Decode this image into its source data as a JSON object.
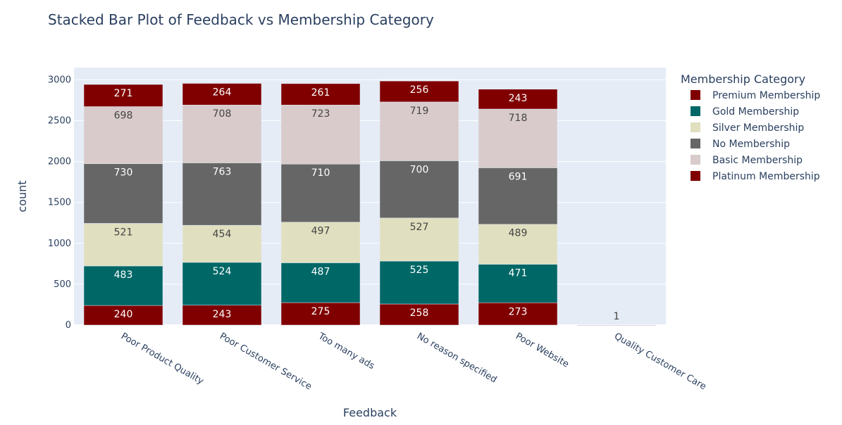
{
  "chart_data": {
    "type": "bar",
    "stacked": true,
    "title": "Stacked Bar Plot of Feedback vs Membership Category",
    "xlabel": "Feedback",
    "ylabel": "count",
    "ylim": [
      0,
      3000
    ],
    "yticks": [
      0,
      500,
      1000,
      1500,
      2000,
      2500,
      3000
    ],
    "grid": true,
    "legend_title": "Membership Category",
    "legend_position": "right",
    "categories": [
      "Poor Product Quality",
      "Poor Customer Service",
      "Too many ads",
      "No reason specified",
      "Poor Website",
      "Quality Customer Care"
    ],
    "series": [
      {
        "name": "Platinum Membership",
        "color": "#800000",
        "text_color": "#ffffff",
        "values": [
          240,
          243,
          275,
          258,
          273,
          null
        ]
      },
      {
        "name": "Gold Membership",
        "color": "#006767",
        "text_color": "#ffffff",
        "values": [
          483,
          524,
          487,
          525,
          471,
          null
        ]
      },
      {
        "name": "Silver Membership",
        "color": "#e0dfbf",
        "text_color": "#444444",
        "values": [
          521,
          454,
          497,
          527,
          489,
          null
        ]
      },
      {
        "name": "No Membership",
        "color": "#666666",
        "text_color": "#ffffff",
        "values": [
          730,
          763,
          710,
          700,
          691,
          null
        ]
      },
      {
        "name": "Basic Membership",
        "color": "#d9cbcb",
        "text_color": "#444444",
        "values": [
          698,
          708,
          723,
          719,
          718,
          1
        ]
      },
      {
        "name": "Premium Membership",
        "color": "#800000",
        "text_color": "#ffffff",
        "values": [
          271,
          264,
          261,
          256,
          243,
          null
        ]
      }
    ],
    "legend_order": [
      "Premium Membership",
      "Gold Membership",
      "Silver Membership",
      "No Membership",
      "Basic Membership",
      "Platinum Membership"
    ]
  }
}
